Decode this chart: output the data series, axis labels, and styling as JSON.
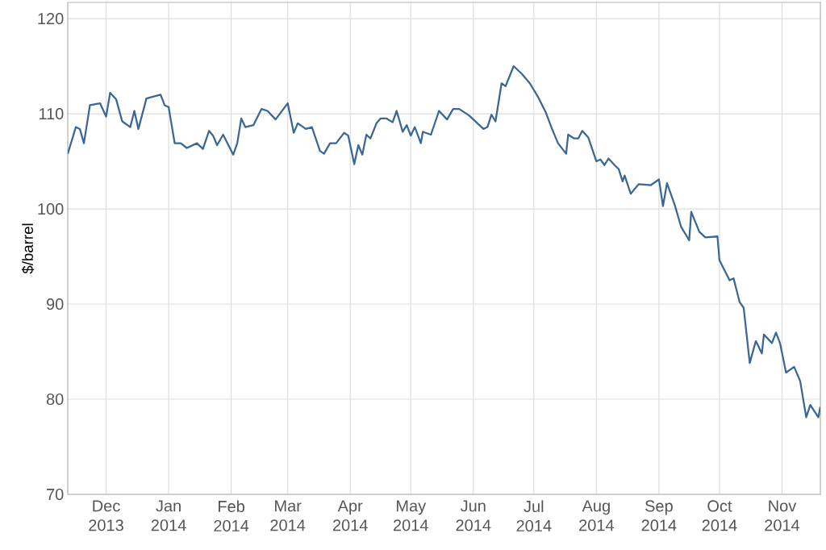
{
  "chart_data": {
    "type": "line",
    "ylabel": "$/barrel",
    "color": "#3a6794",
    "grid": true,
    "marker": "none",
    "line_style": "solid",
    "xlim": [
      "2013-11-12",
      "2014-11-20"
    ],
    "ylim": [
      70,
      121.7
    ],
    "yticks": [
      70,
      80,
      90,
      100,
      110,
      120
    ],
    "xticks": [
      {
        "value": "2013-12-01",
        "label": "Dec 2013"
      },
      {
        "value": "2014-01-01",
        "label": "Jan 2014"
      },
      {
        "value": "2014-02-01",
        "label": "Feb 2014"
      },
      {
        "value": "2014-03-01",
        "label": "Mar 2014"
      },
      {
        "value": "2014-04-01",
        "label": "Apr 2014"
      },
      {
        "value": "2014-05-01",
        "label": "May 2014"
      },
      {
        "value": "2014-06-01",
        "label": "Jun 2014"
      },
      {
        "value": "2014-07-01",
        "label": "Jul 2014"
      },
      {
        "value": "2014-08-01",
        "label": "Aug 2014"
      },
      {
        "value": "2014-09-01",
        "label": "Sep 2014"
      },
      {
        "value": "2014-10-01",
        "label": "Oct 2014"
      },
      {
        "value": "2014-11-01",
        "label": "Nov 2014"
      }
    ],
    "x": [
      "2013-11-12",
      "2013-11-16",
      "2013-11-18",
      "2013-11-20",
      "2013-11-23",
      "2013-11-28",
      "2013-12-01",
      "2013-12-03",
      "2013-12-06",
      "2013-12-09",
      "2013-12-13",
      "2013-12-15",
      "2013-12-17",
      "2013-12-21",
      "2013-12-28",
      "2013-12-30",
      "2014-01-01",
      "2014-01-04",
      "2014-01-07",
      "2014-01-10",
      "2014-01-15",
      "2014-01-18",
      "2014-01-21",
      "2014-01-23",
      "2014-01-25",
      "2014-01-28",
      "2014-02-02",
      "2014-02-04",
      "2014-02-06",
      "2014-02-08",
      "2014-02-12",
      "2014-02-16",
      "2014-02-19",
      "2014-02-23",
      "2014-03-01",
      "2014-03-04",
      "2014-03-06",
      "2014-03-10",
      "2014-03-13",
      "2014-03-17",
      "2014-03-19",
      "2014-03-22",
      "2014-03-25",
      "2014-03-29",
      "2014-03-31",
      "2014-04-03",
      "2014-04-05",
      "2014-04-07",
      "2014-04-09",
      "2014-04-11",
      "2014-04-14",
      "2014-04-16",
      "2014-04-19",
      "2014-04-22",
      "2014-04-24",
      "2014-04-27",
      "2014-04-29",
      "2014-05-01",
      "2014-05-03",
      "2014-05-06",
      "2014-05-07",
      "2014-05-11",
      "2014-05-15",
      "2014-05-19",
      "2014-05-22",
      "2014-05-25",
      "2014-05-30",
      "2014-06-04",
      "2014-06-06",
      "2014-06-08",
      "2014-06-10",
      "2014-06-12",
      "2014-06-15",
      "2014-06-17",
      "2014-06-21",
      "2014-06-25",
      "2014-06-29",
      "2014-07-03",
      "2014-07-07",
      "2014-07-10",
      "2014-07-13",
      "2014-07-17",
      "2014-07-18",
      "2014-07-21",
      "2014-07-23",
      "2014-07-25",
      "2014-07-28",
      "2014-08-01",
      "2014-08-03",
      "2014-08-05",
      "2014-08-07",
      "2014-08-10",
      "2014-08-12",
      "2014-08-14",
      "2014-08-15",
      "2014-08-18",
      "2014-08-22",
      "2014-08-28",
      "2014-09-01",
      "2014-09-03",
      "2014-09-05",
      "2014-09-09",
      "2014-09-12",
      "2014-09-16",
      "2014-09-17",
      "2014-09-21",
      "2014-09-24",
      "2014-09-30",
      "2014-10-01",
      "2014-10-06",
      "2014-10-08",
      "2014-10-11",
      "2014-10-13",
      "2014-10-16",
      "2014-10-19",
      "2014-10-20",
      "2014-10-22",
      "2014-10-23",
      "2014-10-27",
      "2014-10-29",
      "2014-10-31",
      "2014-11-03",
      "2014-11-07",
      "2014-11-10",
      "2014-11-13",
      "2014-11-15",
      "2014-11-19",
      "2014-11-20"
    ],
    "values": [
      105.8,
      108.6,
      108.4,
      106.9,
      110.9,
      111.1,
      109.7,
      112.2,
      111.5,
      109.2,
      108.6,
      110.3,
      108.4,
      111.6,
      112.0,
      110.9,
      110.7,
      106.9,
      106.9,
      106.4,
      106.9,
      106.3,
      108.2,
      107.7,
      106.7,
      107.8,
      105.7,
      106.9,
      109.5,
      108.6,
      108.8,
      110.5,
      110.3,
      109.4,
      111.1,
      108.0,
      109.0,
      108.4,
      108.6,
      106.1,
      105.8,
      106.9,
      106.9,
      108.0,
      107.7,
      104.7,
      106.7,
      105.7,
      107.8,
      107.4,
      109.0,
      109.5,
      109.5,
      109.1,
      110.3,
      108.1,
      108.8,
      107.7,
      108.6,
      106.9,
      108.1,
      107.8,
      110.3,
      109.4,
      110.5,
      110.5,
      109.8,
      108.8,
      108.4,
      108.6,
      109.9,
      109.2,
      113.2,
      112.9,
      115.0,
      114.2,
      113.2,
      111.8,
      110.1,
      108.4,
      106.9,
      105.8,
      107.8,
      107.4,
      107.4,
      108.2,
      107.5,
      105.0,
      105.2,
      104.6,
      105.3,
      104.6,
      104.2,
      102.9,
      103.5,
      101.6,
      102.6,
      102.5,
      103.1,
      100.3,
      102.7,
      100.3,
      98.1,
      96.7,
      99.7,
      97.6,
      97.0,
      97.1,
      94.6,
      92.5,
      92.7,
      90.2,
      89.6,
      83.8,
      86.1,
      85.7,
      84.8,
      86.8,
      85.9,
      87.0,
      85.9,
      82.8,
      83.4,
      81.9,
      78.1,
      79.4,
      78.1,
      79.2
    ]
  }
}
